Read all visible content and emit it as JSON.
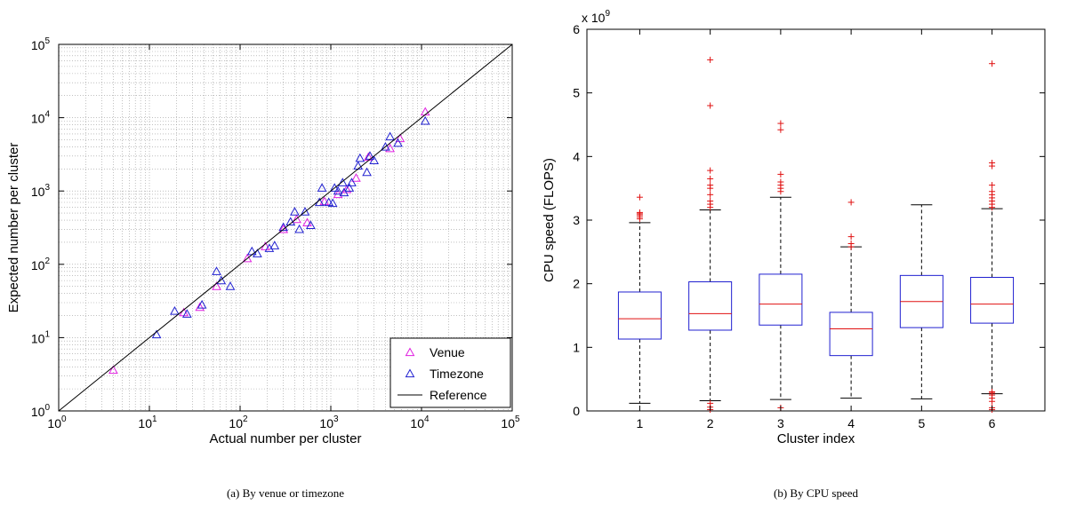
{
  "chart_data": [
    {
      "type": "scatter",
      "caption": "(a) By venue or timezone",
      "xlabel": "Actual number per cluster",
      "ylabel": "Expected number per cluster",
      "xscale": "log",
      "yscale": "log",
      "xlim": [
        1,
        100000
      ],
      "ylim": [
        1,
        100000
      ],
      "xticks": [
        {
          "base": "10",
          "exp": "0"
        },
        {
          "base": "10",
          "exp": "1"
        },
        {
          "base": "10",
          "exp": "2"
        },
        {
          "base": "10",
          "exp": "3"
        },
        {
          "base": "10",
          "exp": "4"
        },
        {
          "base": "10",
          "exp": "5"
        }
      ],
      "yticks": [
        {
          "base": "10",
          "exp": "0"
        },
        {
          "base": "10",
          "exp": "1"
        },
        {
          "base": "10",
          "exp": "2"
        },
        {
          "base": "10",
          "exp": "3"
        },
        {
          "base": "10",
          "exp": "4"
        },
        {
          "base": "10",
          "exp": "5"
        }
      ],
      "grid": true,
      "legend_position": "bottom-right",
      "series": [
        {
          "name": "Venue",
          "color": "#e020e0",
          "marker": "triangle",
          "points": [
            [
              4,
              3.6
            ],
            [
              24,
              22
            ],
            [
              36,
              26
            ],
            [
              55,
              50
            ],
            [
              120,
              120
            ],
            [
              190,
              175
            ],
            [
              300,
              300
            ],
            [
              420,
              410
            ],
            [
              550,
              370
            ],
            [
              850,
              720
            ],
            [
              1200,
              900
            ],
            [
              1500,
              1050
            ],
            [
              1900,
              1500
            ],
            [
              2600,
              2900
            ],
            [
              4500,
              3800
            ],
            [
              5800,
              5200
            ],
            [
              11000,
              12000
            ]
          ]
        },
        {
          "name": "Timezone",
          "color": "#2020d0",
          "marker": "triangle",
          "points": [
            [
              12,
              11
            ],
            [
              19,
              23
            ],
            [
              26,
              21
            ],
            [
              38,
              28
            ],
            [
              55,
              80
            ],
            [
              62,
              60
            ],
            [
              78,
              50
            ],
            [
              135,
              150
            ],
            [
              155,
              140
            ],
            [
              210,
              165
            ],
            [
              240,
              180
            ],
            [
              300,
              320
            ],
            [
              360,
              380
            ],
            [
              400,
              520
            ],
            [
              450,
              300
            ],
            [
              520,
              520
            ],
            [
              600,
              340
            ],
            [
              750,
              700
            ],
            [
              800,
              1100
            ],
            [
              950,
              700
            ],
            [
              1050,
              680
            ],
            [
              1100,
              1100
            ],
            [
              1200,
              1000
            ],
            [
              1350,
              1300
            ],
            [
              1400,
              950
            ],
            [
              1600,
              1100
            ],
            [
              1700,
              1300
            ],
            [
              2000,
              2200
            ],
            [
              2100,
              2800
            ],
            [
              2500,
              1800
            ],
            [
              2700,
              3000
            ],
            [
              3000,
              2600
            ],
            [
              4000,
              4000
            ],
            [
              4500,
              5500
            ],
            [
              5500,
              4500
            ],
            [
              11000,
              9000
            ]
          ]
        },
        {
          "name": "Reference",
          "color": "#000000",
          "marker": "line",
          "points": [
            [
              1,
              1
            ],
            [
              100000,
              100000
            ]
          ]
        }
      ]
    },
    {
      "type": "box",
      "caption": "(b) By CPU speed",
      "xlabel": "Cluster index",
      "ylabel": "CPU speed (FLOPS)",
      "y_multiplier": {
        "base": "x 10",
        "exp": "9"
      },
      "ylim": [
        0,
        6
      ],
      "yticks": [
        "0",
        "1",
        "2",
        "3",
        "4",
        "5",
        "6"
      ],
      "categories": [
        "1",
        "2",
        "3",
        "4",
        "5",
        "6"
      ],
      "grid": false,
      "box_color": "#2020d0",
      "median_color": "#e01010",
      "outlier_color": "#e01010",
      "boxes": [
        {
          "q1": 1.13,
          "median": 1.45,
          "q3": 1.87,
          "whisker_low": 0.12,
          "whisker_high": 2.96,
          "outliers": [
            3.36,
            3.12,
            3.1,
            3.08,
            3.05,
            3.02
          ]
        },
        {
          "q1": 1.27,
          "median": 1.53,
          "q3": 2.03,
          "whisker_low": 0.16,
          "whisker_high": 3.16,
          "outliers": [
            5.52,
            4.8,
            3.78,
            3.65,
            3.55,
            3.5,
            3.4,
            3.3,
            3.25,
            3.2,
            0.12,
            0.06,
            0.02
          ]
        },
        {
          "q1": 1.35,
          "median": 1.68,
          "q3": 2.15,
          "whisker_low": 0.18,
          "whisker_high": 3.36,
          "outliers": [
            4.52,
            4.42,
            3.72,
            3.6,
            3.55,
            3.5,
            3.45,
            0.05
          ]
        },
        {
          "q1": 0.87,
          "median": 1.29,
          "q3": 1.55,
          "whisker_low": 0.2,
          "whisker_high": 2.58,
          "outliers": [
            3.28,
            2.74,
            2.63,
            2.58
          ]
        },
        {
          "q1": 1.31,
          "median": 1.72,
          "q3": 2.13,
          "whisker_low": 0.19,
          "whisker_high": 3.24,
          "outliers": []
        },
        {
          "q1": 1.38,
          "median": 1.68,
          "q3": 2.1,
          "whisker_low": 0.27,
          "whisker_high": 3.18,
          "outliers": [
            5.46,
            3.9,
            3.85,
            3.55,
            3.45,
            3.4,
            3.35,
            3.3,
            3.25,
            3.2,
            0.3,
            0.28,
            0.25,
            0.2,
            0.15,
            0.05,
            0.02
          ]
        }
      ]
    }
  ]
}
